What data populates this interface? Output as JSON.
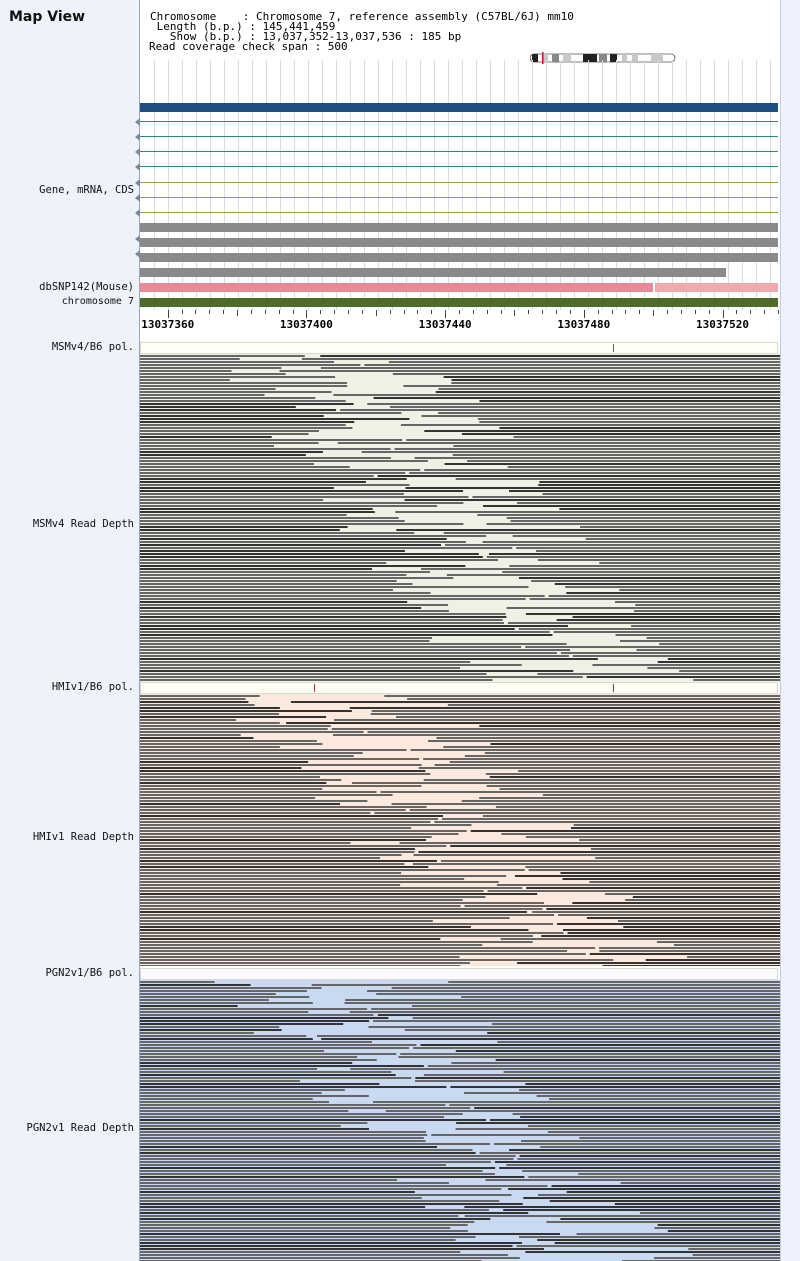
{
  "window": {
    "title": "Map View"
  },
  "info": {
    "chromosome": "Chromosome    : Chromosome 7, reference assembly (C57BL/6J) mm10",
    "length": " Length (b.p.) : 145,441,459",
    "show": "   Show (b.p.) : 13,037,352-13,037,536 : 185 bp",
    "coverage": "Read coverage check span : 500"
  },
  "tracks": {
    "gene_label": "Gene, mRNA, CDS",
    "dbsnp_label": "dbSNP142(Mouse)",
    "chromosome_label": "chromosome 7"
  },
  "ruler": {
    "start": 13037352,
    "end": 13037536,
    "labels": [
      "13037360",
      "13037400",
      "13037440",
      "13037480",
      "13037520"
    ]
  },
  "samples": [
    {
      "pol_label": "MSMv4/B6 pol.",
      "depth_label": "MSMv4 Read Depth",
      "bg_color": "#eef2e4",
      "pol_marks": [
        13037488
      ]
    },
    {
      "pol_label": "HMIv1/B6 pol.",
      "depth_label": "HMIv1 Read Depth",
      "bg_color": "#fbe9dd",
      "pol_marks": [
        13037402,
        13037488
      ]
    },
    {
      "pol_label": "PGN2v1/B6 pol.",
      "depth_label": "PGN2v1 Read Depth",
      "bg_color": "#c9d9f1",
      "pol_marks": []
    }
  ],
  "colors": {
    "gene_main": "#1f4e85",
    "transcript": "#2f8a90",
    "cds_green": "#8fa34a",
    "gray_track": "#8a8a8a",
    "dbsnp": "#e88a98",
    "dbsnp_light": "#f0a9ae",
    "chromosome": "#4e6b2a",
    "read_dark": "#333333",
    "read_gray": "#666666"
  },
  "icons": {
    "ideogram": "chromosome-ideogram-icon",
    "arrow": "strand-arrow-icon"
  }
}
